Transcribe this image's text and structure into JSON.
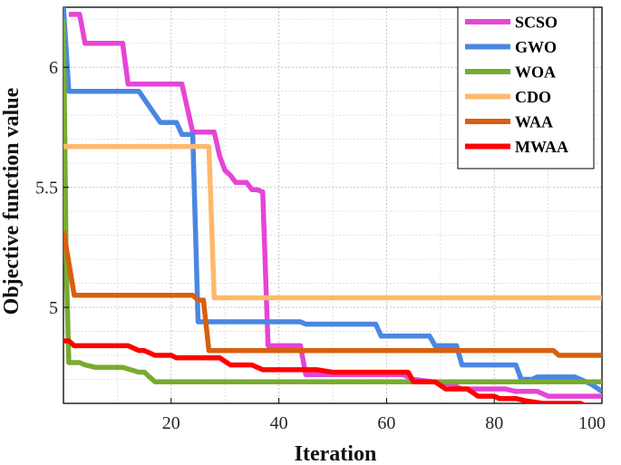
{
  "chart_data": {
    "type": "line",
    "title": "",
    "xlabel": "Iteration",
    "ylabel": "Objective function value",
    "xlim": [
      0,
      100
    ],
    "ylim": [
      4.6,
      6.25
    ],
    "xticks": [
      20,
      40,
      60,
      80,
      100
    ],
    "yticks": [
      5,
      5.5,
      6
    ],
    "xtick_labels": [
      "20",
      "40",
      "60",
      "80",
      "100"
    ],
    "ytick_labels": [
      "5",
      "5.5",
      "6"
    ],
    "grid": true,
    "legend_position": "top-right",
    "series": [
      {
        "name": "SCSO",
        "color": "#e545d6",
        "points": [
          [
            1,
            6.22
          ],
          [
            3,
            6.22
          ],
          [
            4,
            6.1
          ],
          [
            11,
            6.1
          ],
          [
            12,
            5.93
          ],
          [
            22,
            5.93
          ],
          [
            23,
            5.83
          ],
          [
            24,
            5.73
          ],
          [
            28,
            5.73
          ],
          [
            29,
            5.63
          ],
          [
            30,
            5.57
          ],
          [
            31,
            5.55
          ],
          [
            32,
            5.52
          ],
          [
            34,
            5.52
          ],
          [
            35,
            5.49
          ],
          [
            36,
            5.49
          ],
          [
            37,
            5.48
          ],
          [
            38,
            4.84
          ],
          [
            44,
            4.84
          ],
          [
            45,
            4.72
          ],
          [
            63,
            4.72
          ],
          [
            65,
            4.7
          ],
          [
            72,
            4.68
          ],
          [
            74,
            4.66
          ],
          [
            82,
            4.66
          ],
          [
            84,
            4.65
          ],
          [
            88,
            4.65
          ],
          [
            90,
            4.63
          ],
          [
            100,
            4.63
          ]
        ]
      },
      {
        "name": "GWO",
        "color": "#4a87e3",
        "points": [
          [
            0,
            6.25
          ],
          [
            1,
            5.9
          ],
          [
            14,
            5.9
          ],
          [
            18,
            5.77
          ],
          [
            21,
            5.77
          ],
          [
            22,
            5.72
          ],
          [
            24,
            5.72
          ],
          [
            25,
            4.94
          ],
          [
            44,
            4.94
          ],
          [
            45,
            4.93
          ],
          [
            58,
            4.93
          ],
          [
            59,
            4.88
          ],
          [
            68,
            4.88
          ],
          [
            69,
            4.84
          ],
          [
            73,
            4.84
          ],
          [
            74,
            4.76
          ],
          [
            84,
            4.76
          ],
          [
            85,
            4.7
          ],
          [
            87,
            4.7
          ],
          [
            88,
            4.71
          ],
          [
            95,
            4.71
          ],
          [
            98,
            4.68
          ],
          [
            100,
            4.65
          ]
        ]
      },
      {
        "name": "WOA",
        "color": "#77ac30",
        "points": [
          [
            0,
            6.2
          ],
          [
            0.5,
            5.2
          ],
          [
            1,
            4.77
          ],
          [
            3,
            4.77
          ],
          [
            4,
            4.76
          ],
          [
            6,
            4.75
          ],
          [
            11,
            4.75
          ],
          [
            14,
            4.73
          ],
          [
            15,
            4.73
          ],
          [
            16,
            4.71
          ],
          [
            17,
            4.69
          ],
          [
            100,
            4.69
          ]
        ]
      },
      {
        "name": "CDO",
        "color": "#fdb96b",
        "points": [
          [
            0,
            5.67
          ],
          [
            27,
            5.67
          ],
          [
            28,
            5.04
          ],
          [
            100,
            5.04
          ]
        ]
      },
      {
        "name": "WAA",
        "color": "#d95f0e",
        "points": [
          [
            0,
            5.32
          ],
          [
            2,
            5.05
          ],
          [
            24,
            5.05
          ],
          [
            25,
            5.03
          ],
          [
            26,
            5.03
          ],
          [
            27,
            4.82
          ],
          [
            91,
            4.82
          ],
          [
            92,
            4.8
          ],
          [
            100,
            4.8
          ]
        ]
      },
      {
        "name": "MWAA",
        "color": "#ff0000",
        "points": [
          [
            0,
            4.86
          ],
          [
            1,
            4.86
          ],
          [
            2,
            4.84
          ],
          [
            12,
            4.84
          ],
          [
            14,
            4.82
          ],
          [
            15,
            4.82
          ],
          [
            17,
            4.8
          ],
          [
            20,
            4.8
          ],
          [
            21,
            4.79
          ],
          [
            29,
            4.79
          ],
          [
            31,
            4.76
          ],
          [
            35,
            4.76
          ],
          [
            37,
            4.74
          ],
          [
            47,
            4.74
          ],
          [
            50,
            4.73
          ],
          [
            64,
            4.73
          ],
          [
            65,
            4.69
          ],
          [
            69,
            4.69
          ],
          [
            71,
            4.66
          ],
          [
            75,
            4.66
          ],
          [
            77,
            4.63
          ],
          [
            80,
            4.63
          ],
          [
            81,
            4.62
          ],
          [
            84,
            4.62
          ],
          [
            86,
            4.61
          ],
          [
            89,
            4.6
          ],
          [
            96,
            4.6
          ],
          [
            97,
            4.59
          ],
          [
            100,
            4.59
          ]
        ]
      }
    ]
  }
}
